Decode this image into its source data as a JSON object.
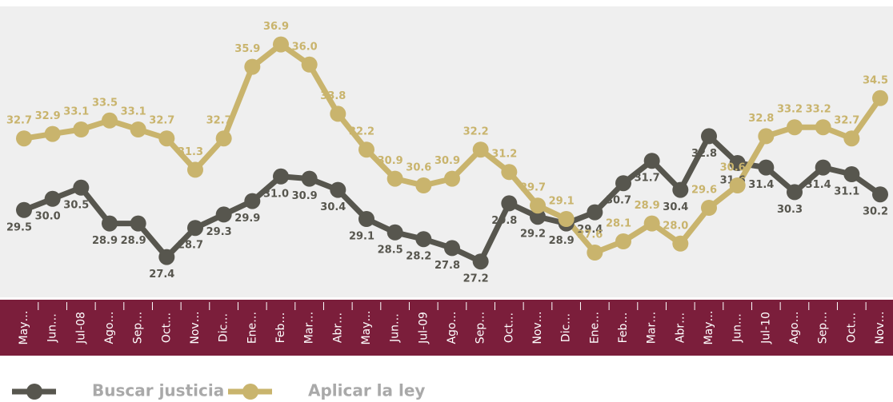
{
  "chart_data": {
    "type": "line",
    "categories": [
      "May…",
      "Jun…",
      "Jul-08",
      "Ago…",
      "Sep…",
      "Oct…",
      "Nov…",
      "Dic…",
      "Ene…",
      "Feb…",
      "Mar…",
      "Abr…",
      "May…",
      "Jun…",
      "Jul-09",
      "Ago…",
      "Sep…",
      "Oct…",
      "Nov…",
      "Dic…",
      "Ene…",
      "Feb…",
      "Mar…",
      "Abr…",
      "May…",
      "Jun…",
      "Jul-10",
      "Ago…",
      "Sep…",
      "Oct…",
      "Nov…"
    ],
    "series": [
      {
        "name": "Buscar justicia",
        "color": "#57564e",
        "values": [
          29.5,
          30.0,
          30.5,
          28.9,
          28.9,
          27.4,
          28.7,
          29.3,
          29.9,
          31.0,
          30.9,
          30.4,
          29.1,
          28.5,
          28.2,
          27.8,
          27.2,
          29.8,
          29.2,
          28.9,
          29.4,
          30.7,
          31.7,
          30.4,
          32.8,
          31.6,
          31.4,
          30.3,
          31.4,
          31.1,
          30.2
        ],
        "value_labels": [
          "29.5",
          "30.0",
          "30.5",
          "28.9",
          "28.9",
          "27.4",
          "28.7",
          "29.3",
          "29.9",
          "31.0",
          "30.9",
          "30.4",
          "29.1",
          "28.5",
          "28.2",
          "27.8",
          "27.2",
          "29.8",
          "29.2",
          "28.9",
          "29.4",
          "30.7",
          "31.7",
          "30.4",
          "32.8",
          "31.6",
          "31.4",
          "30.3",
          "31.4",
          "31.1",
          "30.2"
        ]
      },
      {
        "name": "Aplicar la ley",
        "color": "#c9b46d",
        "values": [
          32.7,
          32.9,
          33.1,
          33.5,
          33.1,
          32.7,
          31.3,
          32.7,
          35.9,
          36.9,
          36.0,
          33.8,
          32.2,
          30.9,
          30.6,
          30.9,
          32.2,
          31.2,
          29.7,
          29.1,
          27.6,
          28.1,
          28.9,
          28.0,
          29.6,
          30.6,
          32.8,
          33.2,
          33.2,
          32.7,
          34.5
        ],
        "value_labels": [
          "32.7",
          "32.9",
          "33.1",
          "33.5",
          "33.1",
          "32.7",
          "31.3",
          "32.7",
          "35.9",
          "36.9",
          "36.0",
          "33.8",
          "32.2",
          "30.9",
          "30.6",
          "30.9",
          "32.2",
          "31.2",
          "29.7",
          "29.1",
          "27.6",
          "28.1",
          "28.9",
          "28.0",
          "29.6",
          "30.6",
          "32.8",
          "33.2",
          "33.2",
          "32.7",
          "34.5"
        ]
      }
    ],
    "ylim": [
      25.6,
      38.6
    ]
  }
}
